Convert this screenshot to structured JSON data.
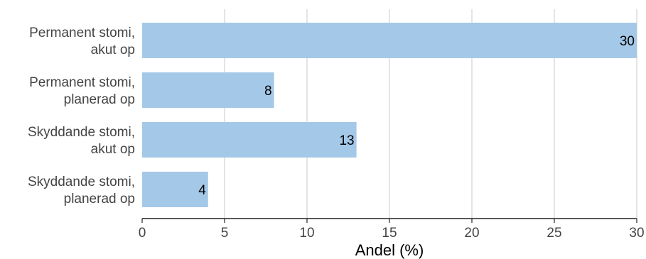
{
  "chart_data": {
    "type": "bar",
    "orientation": "horizontal",
    "categories": [
      [
        "Permanent stomi,",
        "akut op"
      ],
      [
        "Permanent stomi,",
        "planerad op"
      ],
      [
        "Skyddande stomi,",
        "akut op"
      ],
      [
        "Skyddande stomi,",
        "planerad op"
      ]
    ],
    "values": [
      30,
      8,
      13,
      4
    ],
    "value_labels": [
      "30",
      "8",
      "13",
      "4"
    ],
    "xlabel": "Andel (%)",
    "ylabel": "",
    "title": "",
    "xlim": [
      0,
      30
    ],
    "xticks": [
      0,
      5,
      10,
      15,
      20,
      25,
      30
    ],
    "xtick_labels": [
      "0",
      "5",
      "10",
      "15",
      "20",
      "25",
      "30"
    ],
    "grid": "vertical",
    "legend": "none",
    "colors": {
      "bar": "#a4c8e8",
      "grid": "#c8c8c8",
      "axis": "#222222"
    }
  }
}
